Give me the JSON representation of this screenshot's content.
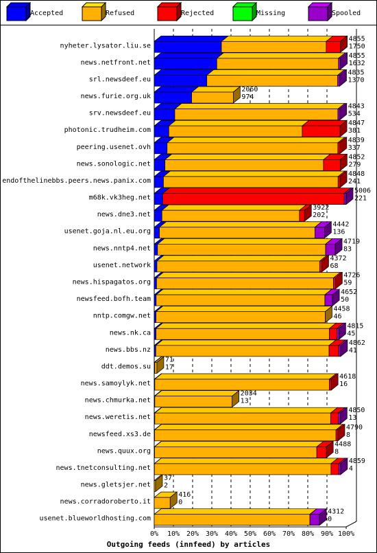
{
  "chart_data": {
    "type": "bar3d",
    "title": "Outgoing feeds (innfeed) by articles",
    "categories": [
      "nyheter.lysator.liu.se",
      "news.netfront.net",
      "srl.newsdeef.eu",
      "news.furie.org.uk",
      "srv.newsdeef.eu",
      "photonic.trudheim.com",
      "peering.usenet.ovh",
      "news.sonologic.net",
      "endofthelinebbs.peers.news.panix.com",
      "m68k.vk3heg.net",
      "news.dne3.net",
      "usenet.goja.nl.eu.org",
      "news.nntp4.net",
      "usenet.network",
      "news.hispagatos.org",
      "newsfeed.bofh.team",
      "nntp.comgw.net",
      "news.nk.ca",
      "news.bbs.nz",
      "ddt.demos.su",
      "news.samoylyk.net",
      "news.chmurka.net",
      "news.weretis.net",
      "newsfeed.xs3.de",
      "news.quux.org",
      "news.tnetconsulting.net",
      "news.gletsjer.net",
      "news.corradoroberto.it",
      "usenet.blueworldhosting.com"
    ],
    "offered": [
      4855,
      4855,
      4835,
      2060,
      4843,
      4847,
      4839,
      4852,
      4848,
      5006,
      3922,
      4442,
      4719,
      4372,
      4726,
      4652,
      4458,
      4815,
      4862,
      71,
      4618,
      2034,
      4850,
      4790,
      4488,
      4859,
      37,
      416,
      4312
    ],
    "accepted": [
      1750,
      1632,
      1370,
      974,
      534,
      381,
      337,
      279,
      241,
      221,
      202,
      136,
      83,
      68,
      59,
      50,
      46,
      45,
      41,
      17,
      16,
      13,
      13,
      8,
      8,
      4,
      2,
      0,
      0
    ],
    "series": [
      {
        "name": "Accepted",
        "color": "#0000ff",
        "values": [
          35.0,
          32.6,
          27.4,
          19.5,
          10.7,
          7.6,
          6.7,
          5.6,
          4.8,
          4.4,
          4.0,
          2.7,
          1.7,
          1.4,
          1.2,
          1.0,
          0.9,
          0.9,
          0.8,
          0.3,
          0.3,
          0.3,
          0.3,
          0.2,
          0.2,
          0.1,
          0.0,
          0,
          0
        ]
      },
      {
        "name": "Refused",
        "color": "#ffb000",
        "values": [
          54.6,
          63.4,
          68.2,
          21.7,
          85.0,
          69.5,
          89.0,
          82.6,
          91.0,
          0,
          71.7,
          81.0,
          87.6,
          84.9,
          92.2,
          87.9,
          88.2,
          90.3,
          90.3,
          1.1,
          90.9,
          40.3,
          91.6,
          94.5,
          84.5,
          92.0,
          0.7,
          8.3,
          81.1
        ]
      },
      {
        "name": "Rejected",
        "color": "#ff0000",
        "values": [
          7.4,
          0,
          0,
          0,
          0,
          19.7,
          1.0,
          8.7,
          1.0,
          94.6,
          2.6,
          0,
          0,
          1.0,
          1.0,
          0,
          0,
          4.0,
          5.0,
          0,
          1.0,
          0,
          4.0,
          1.0,
          5.0,
          4.0,
          0,
          0,
          0
        ]
      },
      {
        "name": "Missing",
        "color": "#00ff00",
        "values": [
          0,
          0,
          0,
          0,
          0,
          0,
          0,
          0,
          0,
          0,
          0,
          0,
          0,
          0,
          0,
          0,
          0,
          0,
          0,
          0,
          0,
          0,
          0,
          0,
          0,
          0,
          0,
          0,
          0
        ]
      },
      {
        "name": "Spooled",
        "color": "#9900cc",
        "values": [
          0,
          1.0,
          1.0,
          0,
          1.0,
          0,
          0,
          0,
          0,
          1.0,
          0,
          5.0,
          5.0,
          0,
          0,
          4.0,
          0,
          1.0,
          1.0,
          0,
          0,
          0,
          1.0,
          0,
          0,
          1.0,
          0,
          0,
          5.0
        ]
      }
    ],
    "xlim": [
      0,
      100
    ],
    "xticks": [
      {
        "value": 0,
        "label": "0%"
      },
      {
        "value": 10,
        "label": "10%"
      },
      {
        "value": 20,
        "label": "20%"
      },
      {
        "value": 30,
        "label": "30%"
      },
      {
        "value": 40,
        "label": "40%"
      },
      {
        "value": 50,
        "label": "50%"
      },
      {
        "value": 60,
        "label": "60%"
      },
      {
        "value": 70,
        "label": "70%"
      },
      {
        "value": 80,
        "label": "80%"
      },
      {
        "value": 90,
        "label": "90%"
      },
      {
        "value": 100,
        "label": "100%"
      }
    ],
    "grid": true
  }
}
